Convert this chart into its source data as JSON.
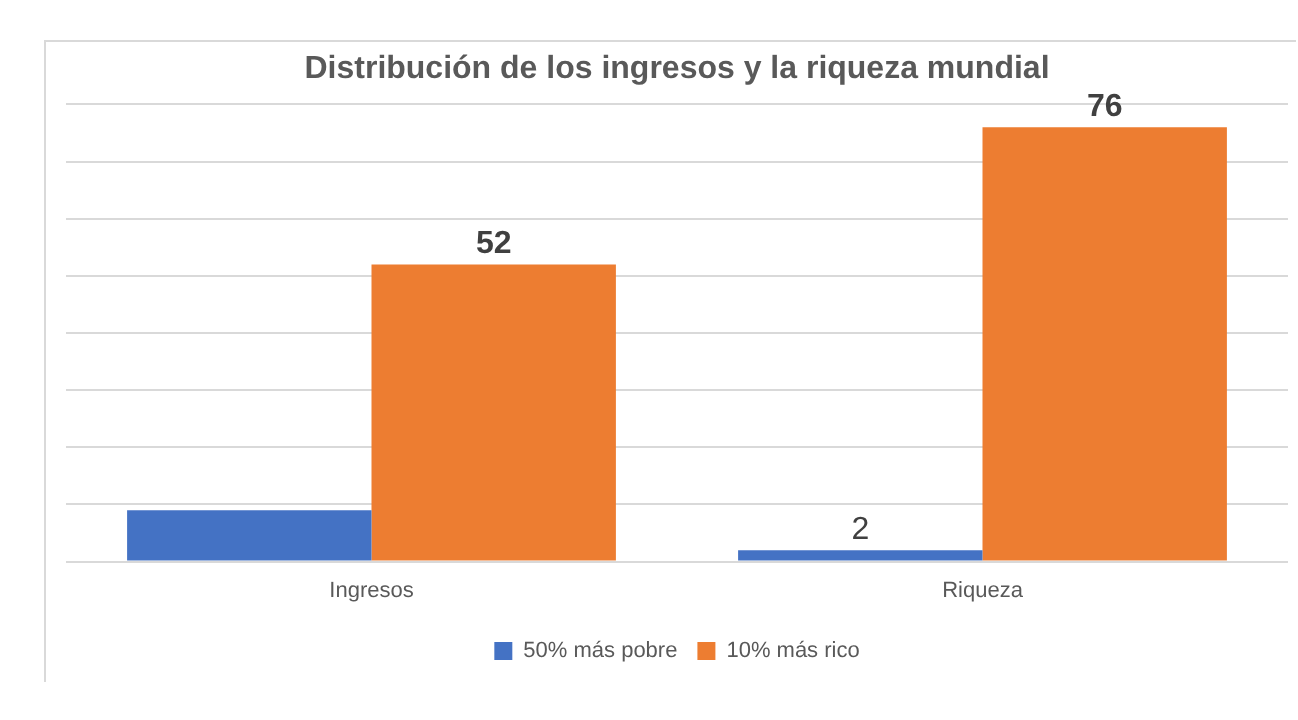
{
  "chart_data": {
    "type": "bar",
    "title": "Distribución de los ingresos y la riqueza mundial",
    "categories": [
      "Ingresos",
      "Riqueza"
    ],
    "series": [
      {
        "name": "50% más pobre",
        "color": "#4472c4",
        "values": [
          9,
          2
        ],
        "value_labels": [
          null,
          "2"
        ]
      },
      {
        "name": "10% más rico",
        "color": "#ed7d31",
        "values": [
          52,
          76
        ],
        "value_labels": [
          "52",
          "76"
        ]
      }
    ],
    "ylim": [
      0,
      80
    ],
    "yticks": [
      {
        "value": 0,
        "label": null
      },
      {
        "value": 10,
        "label": null
      },
      {
        "value": 20,
        "label": null
      },
      {
        "value": 30,
        "label": null
      },
      {
        "value": 40,
        "label": null
      },
      {
        "value": 50,
        "label": null
      },
      {
        "value": 60,
        "label": null
      },
      {
        "value": 70,
        "label": null
      },
      {
        "value": 80,
        "label": null
      }
    ],
    "grid": "y",
    "legend": "bottom",
    "tick_labels": "x"
  }
}
